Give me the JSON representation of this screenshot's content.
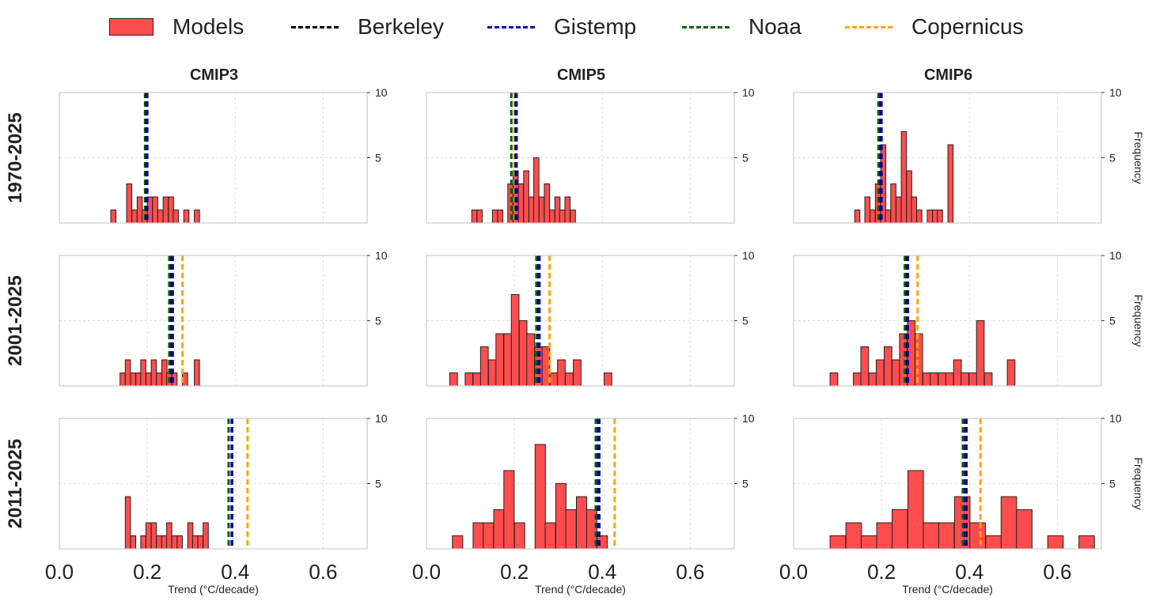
{
  "legend": {
    "models": "Models",
    "berkeley": "Berkeley",
    "gistemp": "Gistemp",
    "noaa": "Noaa",
    "copernicus": "Copernicus"
  },
  "colors": {
    "models": "#ff4d4d",
    "bar_edge": "#222222",
    "berkeley": "#000000",
    "gistemp": "#0000cc",
    "noaa": "#006400",
    "copernicus": "#ffa500",
    "grid": "#dddddd",
    "frame": "#cccccc"
  },
  "columns": [
    "CMIP3",
    "CMIP5",
    "CMIP6"
  ],
  "rows": [
    "1970-2025",
    "2001-2025",
    "2011-2025"
  ],
  "axes": {
    "xlabel": "Trend (°C/decade)",
    "ylabel": "Frequency",
    "xlim": [
      0.0,
      0.7
    ],
    "ylim": [
      0,
      10
    ],
    "xticks": [
      "0.0",
      "0.2",
      "0.4",
      "0.6"
    ],
    "yticks": [
      "5",
      "10"
    ]
  },
  "chart_data": [
    {
      "type": "bar",
      "row": "1970-2025",
      "column": "CMIP3",
      "bin_width": 0.0118,
      "obs": {
        "berkeley": 0.198,
        "gistemp": 0.2,
        "noaa": 0.195,
        "copernicus": 0.199
      },
      "bins": [
        [
          0.117,
          1
        ],
        [
          0.153,
          3
        ],
        [
          0.165,
          1
        ],
        [
          0.177,
          2
        ],
        [
          0.188,
          1
        ],
        [
          0.2,
          2
        ],
        [
          0.212,
          2
        ],
        [
          0.224,
          1
        ],
        [
          0.236,
          2
        ],
        [
          0.248,
          2
        ],
        [
          0.259,
          1
        ],
        [
          0.283,
          1
        ],
        [
          0.307,
          1
        ]
      ]
    },
    {
      "type": "bar",
      "row": "1970-2025",
      "column": "CMIP5",
      "bin_width": 0.0118,
      "obs": {
        "berkeley": 0.203,
        "gistemp": 0.205,
        "noaa": 0.193,
        "copernicus": 0.2
      },
      "bins": [
        [
          0.103,
          1
        ],
        [
          0.115,
          1
        ],
        [
          0.15,
          1
        ],
        [
          0.162,
          1
        ],
        [
          0.185,
          3
        ],
        [
          0.197,
          4
        ],
        [
          0.209,
          3
        ],
        [
          0.221,
          4
        ],
        [
          0.233,
          2
        ],
        [
          0.244,
          5
        ],
        [
          0.256,
          2
        ],
        [
          0.268,
          3
        ],
        [
          0.28,
          1
        ],
        [
          0.292,
          2
        ],
        [
          0.303,
          1
        ],
        [
          0.315,
          2
        ],
        [
          0.327,
          1
        ]
      ]
    },
    {
      "type": "bar",
      "row": "1970-2025",
      "column": "CMIP6",
      "bin_width": 0.0118,
      "obs": {
        "berkeley": 0.198,
        "gistemp": 0.2,
        "noaa": 0.193,
        "copernicus": 0.195
      },
      "bins": [
        [
          0.139,
          1
        ],
        [
          0.162,
          2
        ],
        [
          0.174,
          1
        ],
        [
          0.186,
          3
        ],
        [
          0.198,
          6
        ],
        [
          0.209,
          1
        ],
        [
          0.221,
          3
        ],
        [
          0.233,
          2
        ],
        [
          0.245,
          7
        ],
        [
          0.257,
          4
        ],
        [
          0.268,
          2
        ],
        [
          0.28,
          1
        ],
        [
          0.304,
          1
        ],
        [
          0.316,
          1
        ],
        [
          0.327,
          1
        ],
        [
          0.351,
          6
        ]
      ]
    },
    {
      "type": "bar",
      "row": "2001-2025",
      "column": "CMIP3",
      "bin_width": 0.0118,
      "obs": {
        "berkeley": 0.255,
        "gistemp": 0.258,
        "noaa": 0.25,
        "copernicus": 0.28
      },
      "bins": [
        [
          0.138,
          1
        ],
        [
          0.15,
          2
        ],
        [
          0.162,
          1
        ],
        [
          0.174,
          1
        ],
        [
          0.185,
          2
        ],
        [
          0.197,
          1
        ],
        [
          0.209,
          2
        ],
        [
          0.221,
          1
        ],
        [
          0.233,
          2
        ],
        [
          0.244,
          1
        ],
        [
          0.256,
          1
        ],
        [
          0.28,
          1
        ],
        [
          0.307,
          2
        ]
      ]
    },
    {
      "type": "bar",
      "row": "2001-2025",
      "column": "CMIP5",
      "bin_width": 0.0175,
      "obs": {
        "berkeley": 0.255,
        "gistemp": 0.257,
        "noaa": 0.25,
        "copernicus": 0.28
      },
      "bins": [
        [
          0.053,
          1
        ],
        [
          0.088,
          1
        ],
        [
          0.106,
          1
        ],
        [
          0.123,
          3
        ],
        [
          0.141,
          2
        ],
        [
          0.158,
          4
        ],
        [
          0.176,
          4
        ],
        [
          0.193,
          7
        ],
        [
          0.211,
          5
        ],
        [
          0.228,
          4
        ],
        [
          0.246,
          3
        ],
        [
          0.263,
          3
        ],
        [
          0.281,
          1
        ],
        [
          0.298,
          2
        ],
        [
          0.316,
          1
        ],
        [
          0.334,
          2
        ],
        [
          0.404,
          1
        ]
      ]
    },
    {
      "type": "bar",
      "row": "2001-2025",
      "column": "CMIP6",
      "bin_width": 0.0175,
      "obs": {
        "berkeley": 0.258,
        "gistemp": 0.26,
        "noaa": 0.253,
        "copernicus": 0.282
      },
      "bins": [
        [
          0.083,
          1
        ],
        [
          0.136,
          1
        ],
        [
          0.153,
          3
        ],
        [
          0.171,
          1
        ],
        [
          0.188,
          2
        ],
        [
          0.206,
          3
        ],
        [
          0.224,
          2
        ],
        [
          0.241,
          4
        ],
        [
          0.259,
          5
        ],
        [
          0.276,
          4
        ],
        [
          0.294,
          1
        ],
        [
          0.311,
          1
        ],
        [
          0.329,
          1
        ],
        [
          0.346,
          1
        ],
        [
          0.364,
          2
        ],
        [
          0.381,
          1
        ],
        [
          0.399,
          1
        ],
        [
          0.416,
          5
        ],
        [
          0.434,
          1
        ],
        [
          0.486,
          2
        ]
      ]
    },
    {
      "type": "bar",
      "row": "2011-2025",
      "column": "CMIP3",
      "bin_width": 0.0118,
      "obs": {
        "berkeley": 0.393,
        "gistemp": 0.392,
        "noaa": 0.385,
        "copernicus": 0.428
      },
      "bins": [
        [
          0.15,
          4
        ],
        [
          0.162,
          1
        ],
        [
          0.185,
          1
        ],
        [
          0.197,
          2
        ],
        [
          0.209,
          2
        ],
        [
          0.221,
          1
        ],
        [
          0.233,
          1
        ],
        [
          0.244,
          2
        ],
        [
          0.256,
          1
        ],
        [
          0.268,
          1
        ],
        [
          0.292,
          2
        ],
        [
          0.303,
          1
        ],
        [
          0.315,
          1
        ],
        [
          0.327,
          2
        ]
      ]
    },
    {
      "type": "bar",
      "row": "2011-2025",
      "column": "CMIP5",
      "bin_width": 0.0235,
      "obs": {
        "berkeley": 0.393,
        "gistemp": 0.39,
        "noaa": 0.385,
        "copernicus": 0.428
      },
      "bins": [
        [
          0.059,
          1
        ],
        [
          0.106,
          2
        ],
        [
          0.129,
          2
        ],
        [
          0.153,
          3
        ],
        [
          0.176,
          6
        ],
        [
          0.2,
          2
        ],
        [
          0.247,
          8
        ],
        [
          0.27,
          2
        ],
        [
          0.294,
          5
        ],
        [
          0.317,
          3
        ],
        [
          0.341,
          4
        ],
        [
          0.364,
          3
        ],
        [
          0.388,
          1
        ]
      ]
    },
    {
      "type": "bar",
      "row": "2011-2025",
      "column": "CMIP6",
      "bin_width": 0.0353,
      "obs": {
        "berkeley": 0.393,
        "gistemp": 0.39,
        "noaa": 0.385,
        "copernicus": 0.425
      },
      "bins": [
        [
          0.083,
          1
        ],
        [
          0.119,
          2
        ],
        [
          0.154,
          1
        ],
        [
          0.189,
          2
        ],
        [
          0.224,
          3
        ],
        [
          0.26,
          6
        ],
        [
          0.295,
          2
        ],
        [
          0.33,
          2
        ],
        [
          0.366,
          4
        ],
        [
          0.401,
          2
        ],
        [
          0.437,
          1
        ],
        [
          0.472,
          4
        ],
        [
          0.507,
          3
        ],
        [
          0.578,
          1
        ],
        [
          0.649,
          1
        ]
      ]
    }
  ]
}
